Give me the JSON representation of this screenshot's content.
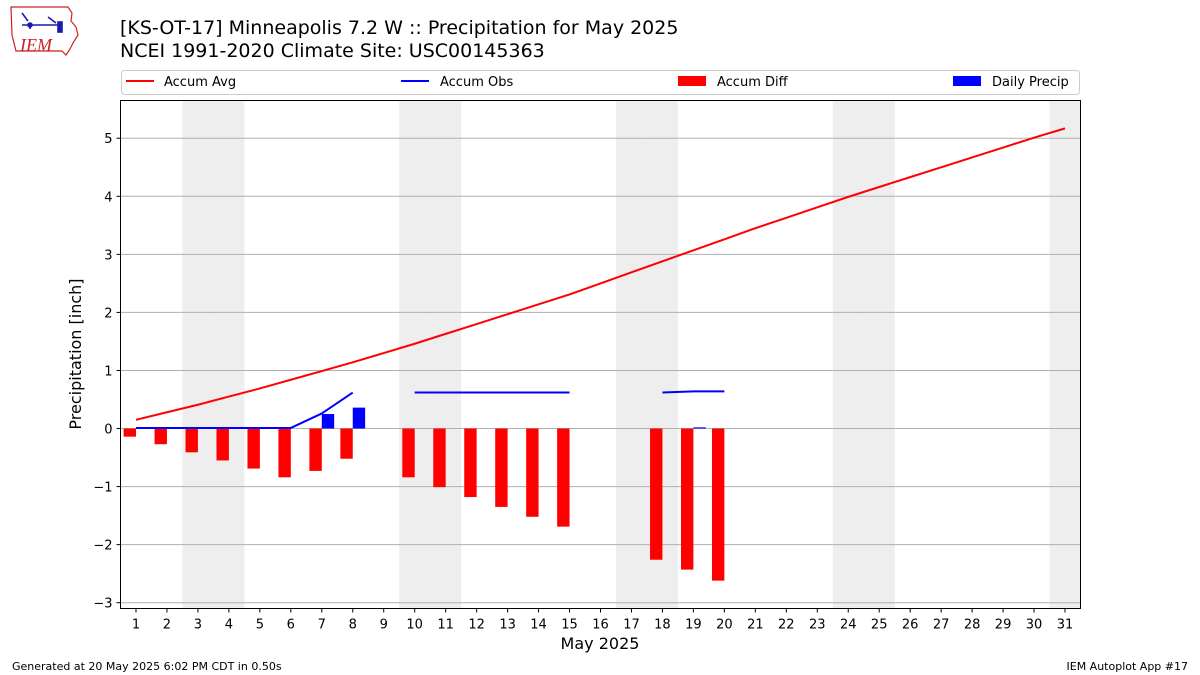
{
  "logo": {
    "text": "IEM"
  },
  "header": {
    "title": "[KS-OT-17] Minneapolis 7.2 W :: Precipitation for May 2025",
    "subtitle": "NCEI 1991-2020 Climate Site: USC00145363"
  },
  "footer": {
    "left": "Generated at 20 May 2025 6:02 PM CDT in 0.50s",
    "right": "IEM Autoplot App #17"
  },
  "colors": {
    "avg": "#ff0000",
    "obs": "#0000ff",
    "diff": "#ff0000",
    "daily": "#0000ff",
    "weekend": "#eeeeee",
    "grid": "#b0b0b0"
  },
  "chart_data": {
    "type": "bar",
    "xlabel": "May 2025",
    "ylabel": "Precipitation [inch]",
    "xlim": [
      0.5,
      31.5
    ],
    "ylim": [
      -3.1,
      5.65
    ],
    "yticks": [
      -3,
      -2,
      -1,
      0,
      1,
      2,
      3,
      4,
      5
    ],
    "ytick_labels": [
      "−3",
      "−2",
      "−1",
      "0",
      "1",
      "2",
      "3",
      "4",
      "5"
    ],
    "x": [
      1,
      2,
      3,
      4,
      5,
      6,
      7,
      8,
      9,
      10,
      11,
      12,
      13,
      14,
      15,
      16,
      17,
      18,
      19,
      20,
      21,
      22,
      23,
      24,
      25,
      26,
      27,
      28,
      29,
      30,
      31
    ],
    "grid": "horizontal",
    "legend": {
      "placement": "top",
      "entries": [
        "Accum Avg",
        "Accum Obs",
        "Accum Diff",
        "Daily Precip"
      ]
    },
    "shaded_days": [
      3,
      4,
      10,
      11,
      17,
      18,
      24,
      25,
      31
    ],
    "series": [
      {
        "name": "Accum Avg",
        "type": "line",
        "values": [
          0.15,
          0.28,
          0.41,
          0.55,
          0.69,
          0.84,
          0.99,
          1.14,
          1.3,
          1.46,
          1.63,
          1.8,
          1.97,
          2.14,
          2.31,
          2.5,
          2.69,
          2.88,
          3.07,
          3.26,
          3.45,
          3.63,
          3.81,
          3.99,
          4.16,
          4.33,
          4.5,
          4.67,
          4.84,
          5.01,
          5.17
        ]
      },
      {
        "name": "Accum Obs",
        "type": "line",
        "values": [
          0.01,
          0.01,
          0.01,
          0.01,
          0.01,
          0.01,
          0.26,
          0.62,
          null,
          0.62,
          0.62,
          0.62,
          0.62,
          0.62,
          0.62,
          null,
          null,
          0.62,
          0.64,
          0.64,
          null,
          null,
          null,
          null,
          null,
          null,
          null,
          null,
          null,
          null,
          null
        ]
      },
      {
        "name": "Accum Diff",
        "type": "bar",
        "values": [
          -0.14,
          -0.27,
          -0.41,
          -0.55,
          -0.69,
          -0.84,
          -0.73,
          -0.52,
          null,
          -0.84,
          -1.01,
          -1.18,
          -1.35,
          -1.52,
          -1.69,
          null,
          null,
          -2.26,
          -2.43,
          -2.62,
          null,
          null,
          null,
          null,
          null,
          null,
          null,
          null,
          null,
          null,
          null
        ]
      },
      {
        "name": "Daily Precip",
        "type": "bar",
        "values": [
          0,
          0,
          0,
          0,
          0,
          0,
          0.25,
          0.36,
          null,
          0,
          0,
          0,
          0,
          0,
          0,
          null,
          null,
          0,
          0.02,
          0,
          null,
          null,
          null,
          null,
          null,
          null,
          null,
          null,
          null,
          null,
          null
        ]
      }
    ]
  }
}
